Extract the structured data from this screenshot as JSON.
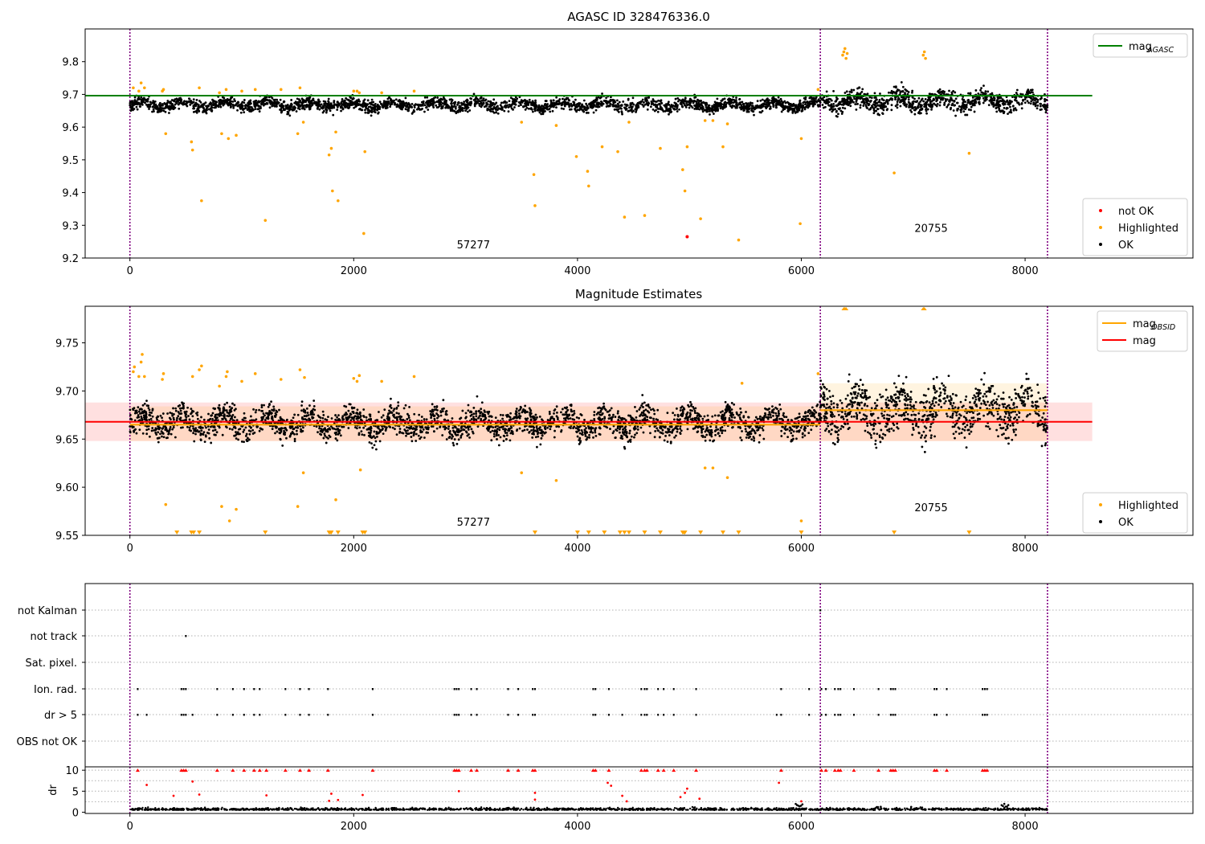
{
  "figure": {
    "panel1_title": "AGASC ID 328476336.0",
    "panel2_title": "Magnitude Estimates"
  },
  "colors": {
    "ok": "#000000",
    "highlighted": "#ffa500",
    "not_ok": "#ff0000",
    "mag_agasc_line": "#008000",
    "mag_obsid_line": "#ffa500",
    "mag_line": "#ff0000",
    "obsid_separator": "#800080",
    "grid": "#b0b0b0"
  },
  "chart_data": [
    {
      "type": "scatter",
      "title": "AGASC ID 328476336.0",
      "xlabel": "",
      "ylabel": "",
      "xlim": [
        -400,
        9500
      ],
      "ylim": [
        9.2,
        9.9
      ],
      "xticks": [
        0,
        2000,
        4000,
        6000,
        8000
      ],
      "xtick_labels": [
        "0",
        "2000",
        "4000",
        "6000",
        "8000"
      ],
      "yticks": [
        9.2,
        9.3,
        9.4,
        9.5,
        9.6,
        9.7,
        9.8
      ],
      "ytick_labels": [
        "9.2",
        "9.3",
        "9.4",
        "9.5",
        "9.6",
        "9.7",
        "9.8"
      ],
      "grid": false,
      "obsid_boundaries": [
        0,
        6170,
        8200
      ],
      "obsid_labels": [
        {
          "text": "57277",
          "x": 3070,
          "y": 9.23
        },
        {
          "text": "20755",
          "x": 7160,
          "y": 9.28
        }
      ],
      "reference_lines": [
        {
          "name": "mag_AGASC",
          "y": 9.696,
          "x_range": [
            -400,
            8600
          ],
          "color": "#008000"
        }
      ],
      "ok_band": [
        {
          "x_range": [
            0,
            6170
          ],
          "y_mean": 9.668,
          "y_spread": 0.022
        },
        {
          "x_range": [
            6170,
            8200
          ],
          "y_mean": 9.68,
          "y_spread": 0.035
        }
      ],
      "highlighted_points": [
        [
          30,
          9.72
        ],
        [
          80,
          9.71
        ],
        [
          100,
          9.735
        ],
        [
          130,
          9.72
        ],
        [
          290,
          9.71
        ],
        [
          300,
          9.715
        ],
        [
          320,
          9.58
        ],
        [
          550,
          9.555
        ],
        [
          560,
          9.53
        ],
        [
          620,
          9.72
        ],
        [
          640,
          9.375
        ],
        [
          800,
          9.705
        ],
        [
          820,
          9.58
        ],
        [
          860,
          9.715
        ],
        [
          880,
          9.565
        ],
        [
          950,
          9.575
        ],
        [
          1000,
          9.71
        ],
        [
          1120,
          9.715
        ],
        [
          1210,
          9.315
        ],
        [
          1350,
          9.715
        ],
        [
          1500,
          9.58
        ],
        [
          1520,
          9.72
        ],
        [
          1550,
          9.615
        ],
        [
          1780,
          9.515
        ],
        [
          1800,
          9.535
        ],
        [
          1810,
          9.405
        ],
        [
          1840,
          9.585
        ],
        [
          1860,
          9.375
        ],
        [
          2000,
          9.71
        ],
        [
          2030,
          9.71
        ],
        [
          2050,
          9.705
        ],
        [
          2090,
          9.275
        ],
        [
          2100,
          9.525
        ],
        [
          2250,
          9.705
        ],
        [
          2540,
          9.71
        ],
        [
          3500,
          9.615
        ],
        [
          3610,
          9.455
        ],
        [
          3620,
          9.36
        ],
        [
          3810,
          9.605
        ],
        [
          3990,
          9.51
        ],
        [
          4090,
          9.465
        ],
        [
          4100,
          9.42
        ],
        [
          4220,
          9.54
        ],
        [
          4360,
          9.525
        ],
        [
          4420,
          9.325
        ],
        [
          4460,
          9.615
        ],
        [
          4600,
          9.33
        ],
        [
          4740,
          9.535
        ],
        [
          4940,
          9.47
        ],
        [
          4960,
          9.405
        ],
        [
          4980,
          9.54
        ],
        [
          5100,
          9.32
        ],
        [
          5140,
          9.62
        ],
        [
          5210,
          9.62
        ],
        [
          5300,
          9.54
        ],
        [
          5340,
          9.61
        ],
        [
          5440,
          9.255
        ],
        [
          5990,
          9.305
        ],
        [
          6000,
          9.565
        ],
        [
          6370,
          9.82
        ],
        [
          6380,
          9.83
        ],
        [
          6390,
          9.84
        ],
        [
          6400,
          9.81
        ],
        [
          6410,
          9.825
        ],
        [
          7090,
          9.82
        ],
        [
          7100,
          9.83
        ],
        [
          7110,
          9.81
        ],
        [
          6830,
          9.46
        ],
        [
          7500,
          9.52
        ],
        [
          6150,
          9.715
        ]
      ],
      "not_ok_points": [
        [
          4980,
          9.265
        ]
      ],
      "legends": [
        {
          "position": "top-right",
          "entries": [
            {
              "label": "mag",
              "sub": "AGASC",
              "color": "#008000",
              "kind": "line"
            }
          ]
        },
        {
          "position": "lower-right",
          "entries": [
            {
              "label": "not OK",
              "color": "#ff0000",
              "kind": "dot"
            },
            {
              "label": "Highlighted",
              "color": "#ffa500",
              "kind": "dot"
            },
            {
              "label": "OK",
              "color": "#000000",
              "kind": "dot"
            }
          ]
        }
      ]
    },
    {
      "type": "scatter",
      "title": "Magnitude Estimates",
      "xlabel": "",
      "ylabel": "",
      "xlim": [
        -400,
        9500
      ],
      "ylim": [
        9.55,
        9.788
      ],
      "xticks": [
        0,
        2000,
        4000,
        6000,
        8000
      ],
      "xtick_labels": [
        "0",
        "2000",
        "4000",
        "6000",
        "8000"
      ],
      "yticks": [
        9.55,
        9.6,
        9.65,
        9.7,
        9.75
      ],
      "ytick_labels": [
        "9.55",
        "9.60",
        "9.65",
        "9.70",
        "9.75"
      ],
      "grid": false,
      "obsid_boundaries": [
        0,
        6170,
        8200
      ],
      "obsid_labels": [
        {
          "text": "57277",
          "x": 3070,
          "y": 9.56
        },
        {
          "text": "20755",
          "x": 7160,
          "y": 9.575
        }
      ],
      "mag": {
        "y": 9.668,
        "band": [
          9.648,
          9.688
        ],
        "x_range": [
          -400,
          8600
        ],
        "color": "#ff0000"
      },
      "mag_obsid": [
        {
          "x_range": [
            0,
            6170
          ],
          "y": 9.665,
          "band": [
            9.648,
            9.684
          ]
        },
        {
          "x_range": [
            6170,
            8200
          ],
          "y": 9.68,
          "band": [
            9.648,
            9.708
          ]
        }
      ],
      "ok_band": [
        {
          "x_range": [
            0,
            6170
          ],
          "y_mean": 9.667,
          "y_spread": 0.018
        },
        {
          "x_range": [
            6170,
            8200
          ],
          "y_mean": 9.68,
          "y_spread": 0.03
        }
      ],
      "highlighted_points": [
        [
          30,
          9.72
        ],
        [
          40,
          9.725
        ],
        [
          80,
          9.715
        ],
        [
          100,
          9.73
        ],
        [
          110,
          9.738
        ],
        [
          130,
          9.715
        ],
        [
          290,
          9.712
        ],
        [
          300,
          9.718
        ],
        [
          320,
          9.582
        ],
        [
          560,
          9.715
        ],
        [
          620,
          9.722
        ],
        [
          640,
          9.726
        ],
        [
          800,
          9.705
        ],
        [
          820,
          9.58
        ],
        [
          860,
          9.715
        ],
        [
          870,
          9.72
        ],
        [
          890,
          9.565
        ],
        [
          950,
          9.577
        ],
        [
          1000,
          9.71
        ],
        [
          1120,
          9.718
        ],
        [
          1350,
          9.712
        ],
        [
          1500,
          9.58
        ],
        [
          1520,
          9.722
        ],
        [
          1550,
          9.615
        ],
        [
          1560,
          9.714
        ],
        [
          1840,
          9.587
        ],
        [
          2000,
          9.713
        ],
        [
          2030,
          9.71
        ],
        [
          2050,
          9.716
        ],
        [
          2060,
          9.618
        ],
        [
          2250,
          9.71
        ],
        [
          2540,
          9.715
        ],
        [
          3500,
          9.615
        ],
        [
          3810,
          9.607
        ],
        [
          5140,
          9.62
        ],
        [
          5210,
          9.62
        ],
        [
          5340,
          9.61
        ],
        [
          5470,
          9.708
        ],
        [
          6000,
          9.565
        ],
        [
          6150,
          9.718
        ]
      ],
      "clipped_low_markers": [
        420,
        550,
        570,
        620,
        1210,
        1780,
        1790,
        1800,
        1860,
        2080,
        2100,
        3620,
        4000,
        4100,
        4240,
        4380,
        4420,
        4460,
        4600,
        4740,
        4940,
        4950,
        4960,
        5100,
        5300,
        5440,
        6000,
        6830,
        7500
      ],
      "clipped_high_markers": [
        6380,
        6390,
        6400,
        7090,
        7100
      ],
      "legends": [
        {
          "position": "top-right",
          "entries": [
            {
              "label": "mag",
              "sub": "OBSID",
              "color": "#ffa500",
              "kind": "line"
            },
            {
              "label": "mag",
              "sub": "",
              "color": "#ff0000",
              "kind": "line"
            }
          ]
        },
        {
          "position": "lower-right",
          "entries": [
            {
              "label": "Highlighted",
              "color": "#ffa500",
              "kind": "dot"
            },
            {
              "label": "OK",
              "color": "#000000",
              "kind": "dot"
            }
          ]
        }
      ]
    },
    {
      "type": "scatter",
      "title": "",
      "xlabel": "",
      "ylabel": "",
      "xlim": [
        -400,
        9500
      ],
      "categories": [
        "not Kalman",
        "not track",
        "Sat. pixel.",
        "Ion. rad.",
        "dr > 5",
        "OBS not OK"
      ],
      "grid": true,
      "obsid_boundaries": [
        0,
        6170,
        8200
      ],
      "flags": {
        "not Kalman": [
          6170
        ],
        "not track": [
          500
        ],
        "Sat. pixel.": [],
        "Ion. rad.": [
          70,
          460,
          480,
          500,
          780,
          920,
          1020,
          1110,
          1160,
          1390,
          1520,
          1600,
          1770,
          2170,
          2900,
          2920,
          2940,
          3050,
          3100,
          3380,
          3470,
          3600,
          3620,
          4140,
          4160,
          4280,
          4570,
          4600,
          4620,
          4720,
          4770,
          4860,
          5060,
          5820,
          6070,
          6180,
          6220,
          6300,
          6330,
          6350,
          6470,
          6690,
          6800,
          6820,
          6840,
          7190,
          7210,
          7300,
          7620,
          7640,
          7660
        ],
        "dr > 5": [
          70,
          150,
          460,
          480,
          500,
          560,
          780,
          920,
          1020,
          1110,
          1160,
          1390,
          1520,
          1600,
          1770,
          2170,
          2900,
          2920,
          2940,
          3050,
          3100,
          3380,
          3470,
          3600,
          3620,
          4140,
          4160,
          4280,
          4400,
          4570,
          4600,
          4620,
          4720,
          4770,
          4860,
          5060,
          5780,
          5820,
          6070,
          6180,
          6220,
          6300,
          6330,
          6350,
          6470,
          6690,
          6800,
          6820,
          6840,
          7190,
          7210,
          7300,
          7620,
          7640,
          7660
        ],
        "OBS not OK": []
      }
    },
    {
      "type": "scatter",
      "title": "",
      "xlabel": "",
      "ylabel": "dr",
      "xlim": [
        -400,
        9500
      ],
      "ylim": [
        -0.3,
        10.8
      ],
      "xticks": [
        0,
        2000,
        4000,
        6000,
        8000
      ],
      "xtick_labels": [
        "0",
        "2000",
        "4000",
        "6000",
        "8000"
      ],
      "yticks": [
        0,
        5,
        10
      ],
      "ytick_labels": [
        "0",
        "5",
        "10"
      ],
      "obsid_boundaries": [
        0,
        6170,
        8200
      ],
      "dr_ok_level": 0.5,
      "dr_clipped_at_10": [
        70,
        460,
        480,
        500,
        780,
        920,
        1020,
        1110,
        1160,
        1220,
        1390,
        1520,
        1600,
        1770,
        2170,
        2900,
        2920,
        2940,
        3050,
        3100,
        3380,
        3470,
        3600,
        3620,
        4140,
        4160,
        4280,
        4570,
        4600,
        4620,
        4720,
        4770,
        4860,
        5060,
        5820,
        6180,
        6220,
        6300,
        6330,
        6350,
        6470,
        6690,
        6800,
        6820,
        6840,
        7190,
        7210,
        7300,
        7620,
        7640,
        7660
      ],
      "dr_red_points": [
        [
          150,
          6.5
        ],
        [
          390,
          3.9
        ],
        [
          560,
          7.3
        ],
        [
          620,
          4.2
        ],
        [
          1220,
          4.0
        ],
        [
          1780,
          2.7
        ],
        [
          1800,
          4.4
        ],
        [
          1860,
          2.9
        ],
        [
          2080,
          4.1
        ],
        [
          2940,
          5.0
        ],
        [
          3620,
          4.6
        ],
        [
          3620,
          3.0
        ],
        [
          4270,
          7.0
        ],
        [
          4300,
          6.3
        ],
        [
          4400,
          3.9
        ],
        [
          4440,
          2.6
        ],
        [
          4920,
          3.6
        ],
        [
          4960,
          4.6
        ],
        [
          4980,
          5.6
        ],
        [
          5090,
          3.2
        ],
        [
          5800,
          7.0
        ],
        [
          6000,
          2.6
        ]
      ],
      "dr_ok_highlights": [
        [
          5980,
          2.0
        ],
        [
          6680,
          1.4
        ],
        [
          7000,
          1.3
        ],
        [
          7820,
          2.0
        ]
      ]
    }
  ]
}
